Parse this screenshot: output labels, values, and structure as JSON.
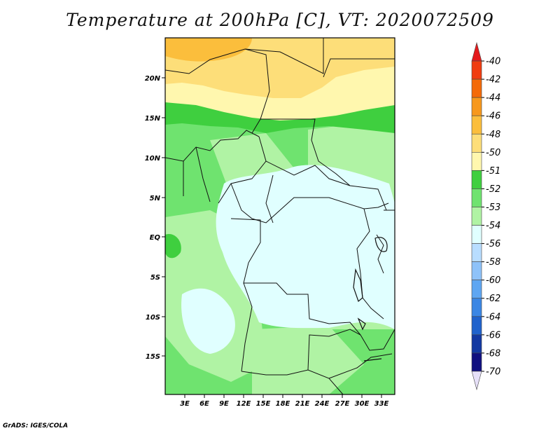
{
  "title": "Temperature at 200hPa [C], VT: 2020072509",
  "credit": "GrADS: IGES/COLA",
  "map": {
    "region": "Central Africa",
    "lat_labels": [
      "20N",
      "15N",
      "10N",
      "5N",
      "EQ",
      "5S",
      "10S",
      "15S"
    ],
    "lon_labels": [
      "3E",
      "6E",
      "9E",
      "12E",
      "15E",
      "18E",
      "21E",
      "24E",
      "27E",
      "30E",
      "33E"
    ]
  },
  "colorbar": {
    "labels": [
      "-40",
      "-42",
      "-44",
      "-46",
      "-48",
      "-50",
      "-51",
      "-52",
      "-53",
      "-54",
      "-56",
      "-58",
      "-60",
      "-62",
      "-64",
      "-66",
      "-68",
      "-70"
    ],
    "colors": [
      "#e41a1c",
      "#f03c10",
      "#f46a08",
      "#f7981c",
      "#fbbe3c",
      "#fdde79",
      "#fff7ae",
      "#3fcf3f",
      "#6fe36f",
      "#b0f3a4",
      "#e0ffff",
      "#b8ddff",
      "#8ec2f9",
      "#5ea6f2",
      "#3a86e4",
      "#1f62cc",
      "#1238a2",
      "#101080",
      "#e6e0f8"
    ]
  }
}
